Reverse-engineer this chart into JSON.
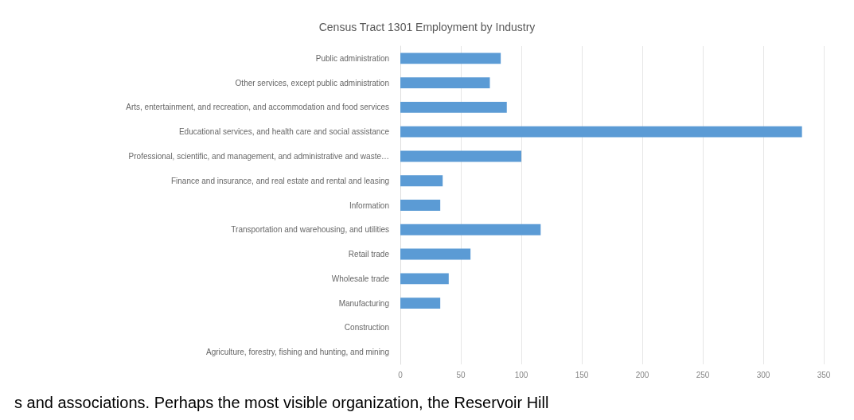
{
  "chart_data": {
    "type": "bar",
    "orientation": "horizontal",
    "title": "Census Tract 1301 Employment by Industry",
    "categories": [
      "Public administration",
      "Other services, except public administration",
      "Arts, entertainment, and recreation, and accommodation and food services",
      "Educational services, and health care and social assistance",
      "Professional, scientific, and management, and administrative and waste…",
      "Finance and insurance, and real estate and rental and leasing",
      "Information",
      "Transportation and warehousing, and utilities",
      "Retail trade",
      "Wholesale trade",
      "Manufacturing",
      "Construction",
      "Agriculture, forestry, fishing and hunting, and mining"
    ],
    "values": [
      83,
      74,
      88,
      332,
      100,
      35,
      33,
      116,
      58,
      40,
      33,
      0,
      0
    ],
    "color": "#5b9bd5",
    "xlim": [
      0,
      350
    ],
    "xticks": [
      0,
      50,
      100,
      150,
      200,
      250,
      300,
      350
    ],
    "grid": "x",
    "annotations": [
      "s and associations. Perhaps the most visible organization, the Reservoir Hill"
    ]
  }
}
